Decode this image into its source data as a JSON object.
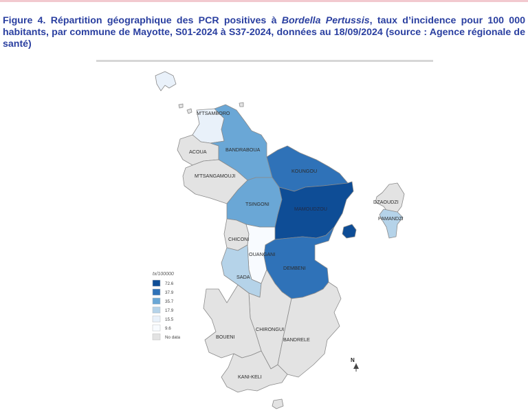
{
  "caption": {
    "prefix": "Figure 4. Répartition géographique des PCR positives à ",
    "organism": "Bordella Pertussis",
    "suffix": ", taux d’incidence pour 100 000 habitants, par commune de Mayotte, S01-2024 à S37-2024, données au 18/09/2024 (source : Agence régionale de santé)"
  },
  "colors": {
    "c72_6": "#0e4d96",
    "c37_9": "#2f72b8",
    "c35_7": "#6aa7d6",
    "c17_9": "#b5d3e9",
    "c15_5": "#e9f1fa",
    "c9_6": "#f8fbff",
    "no_data": "#e3e3e3",
    "border": "#8a8a8a"
  },
  "communes": [
    {
      "name": "M'TSAMBORO",
      "fill": "c15_5"
    },
    {
      "name": "ACOUA",
      "fill": "no_data"
    },
    {
      "name": "BANDRABOUA",
      "fill": "c35_7"
    },
    {
      "name": "M'TSANGAMOUJI",
      "fill": "no_data"
    },
    {
      "name": "KOUNGOU",
      "fill": "c37_9"
    },
    {
      "name": "TSINGONI",
      "fill": "c35_7"
    },
    {
      "name": "MAMOUDZOU",
      "fill": "c72_6"
    },
    {
      "name": "CHICONI",
      "fill": "no_data"
    },
    {
      "name": "OUANGANI",
      "fill": "c9_6"
    },
    {
      "name": "SADA",
      "fill": "c17_9"
    },
    {
      "name": "DEMBENI",
      "fill": "c37_9"
    },
    {
      "name": "CHIRONGUI",
      "fill": "no_data"
    },
    {
      "name": "BANDRELE",
      "fill": "no_data"
    },
    {
      "name": "BOUENI",
      "fill": "no_data"
    },
    {
      "name": "KANI-KELI",
      "fill": "no_data"
    },
    {
      "name": "DZAOUDZI",
      "fill": "no_data"
    },
    {
      "name": "PAMANDZI",
      "fill": "c17_9"
    }
  ],
  "legend": {
    "title": "tx/100000",
    "items": [
      {
        "label": "72.6",
        "fill": "c72_6"
      },
      {
        "label": "37.9",
        "fill": "c37_9"
      },
      {
        "label": "35.7",
        "fill": "c35_7"
      },
      {
        "label": "17.9",
        "fill": "c17_9"
      },
      {
        "label": "15.5",
        "fill": "c15_5"
      },
      {
        "label": "9.6",
        "fill": "c9_6"
      },
      {
        "label": "No data",
        "fill": "no_data"
      }
    ]
  },
  "north_label": "N"
}
